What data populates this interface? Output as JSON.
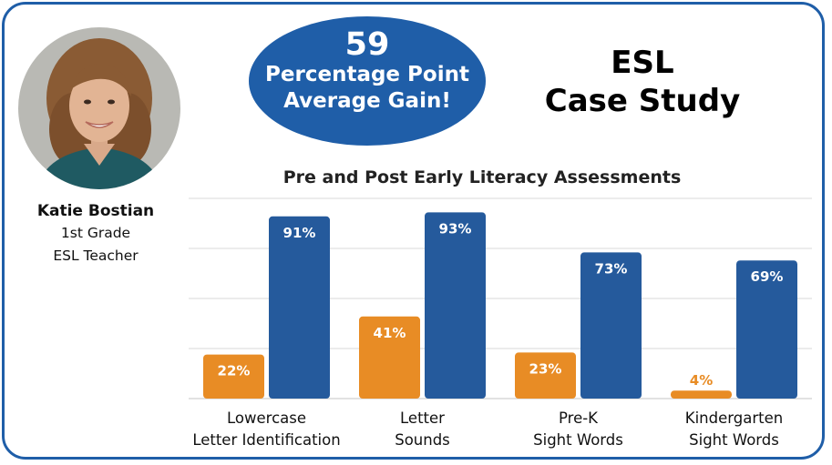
{
  "teacher": {
    "name": "Katie Bostian",
    "grade": "1st Grade",
    "role": "ESL Teacher"
  },
  "highlight": {
    "value": "59",
    "line1": "Percentage Point",
    "line2": "Average Gain!"
  },
  "heading": {
    "line1": "ESL",
    "line2": "Case Study"
  },
  "colors": {
    "frame": "#1f5ea8",
    "pre": "#e88c25",
    "post": "#255a9c",
    "grid": "#d9d9d9"
  },
  "chart_data": {
    "type": "bar",
    "title": "Pre and Post Early Literacy Assessments",
    "categories": [
      [
        "Lowercase",
        "Letter Identification"
      ],
      [
        "Letter",
        "Sounds"
      ],
      [
        "Pre-K",
        "Sight Words"
      ],
      [
        "Kindergarten",
        "Sight Words"
      ]
    ],
    "series": [
      {
        "values": [
          22,
          41,
          23,
          4
        ],
        "labels": [
          "22%",
          "41%",
          "23%",
          "4%"
        ]
      },
      {
        "values": [
          91,
          93,
          73,
          69
        ],
        "labels": [
          "91%",
          "93%",
          "73%",
          "69%"
        ]
      }
    ],
    "ylim": [
      0,
      100
    ],
    "grid": true,
    "legend": "none"
  }
}
